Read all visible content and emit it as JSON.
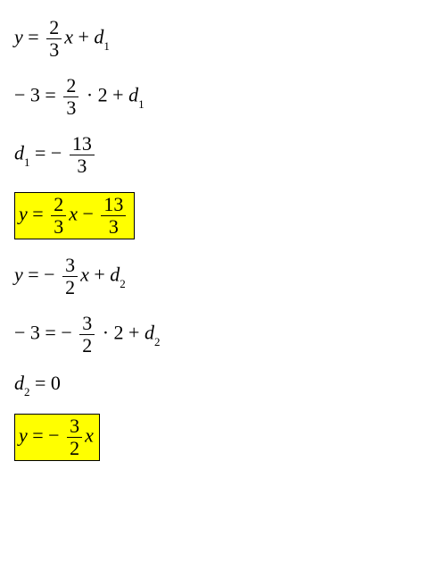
{
  "colors": {
    "background": "#ffffff",
    "text": "#000000",
    "highlight_bg": "#ffff00",
    "highlight_border": "#000000"
  },
  "font": {
    "family": "Times New Roman",
    "size": 22,
    "style": "italic"
  },
  "eq1": {
    "y": "y",
    "eq": " = ",
    "num": "2",
    "den": "3",
    "x": "x",
    "plus": " + ",
    "d": "d",
    "sub": "1"
  },
  "eq2": {
    "lhs": "− 3 = ",
    "num": "2",
    "den": "3",
    "dot": " · 2 + ",
    "d": "d",
    "sub": "1"
  },
  "eq3": {
    "d": "d",
    "sub": "1",
    "eq": " = − ",
    "num": "13",
    "den": "3"
  },
  "eq4": {
    "y": "y",
    "eq": " = ",
    "num1": "2",
    "den1": "3",
    "x": "x",
    "minus": " − ",
    "num2": "13",
    "den2": "3"
  },
  "eq5": {
    "y": "y",
    "eq": " = − ",
    "num": "3",
    "den": "2",
    "x": "x",
    "plus": " + ",
    "d": "d",
    "sub": "2"
  },
  "eq6": {
    "lhs": "− 3 = − ",
    "num": "3",
    "den": "2",
    "dot": " · 2 + ",
    "d": "d",
    "sub": "2"
  },
  "eq7": {
    "d": "d",
    "sub": "2",
    "rhs": " = 0"
  },
  "eq8": {
    "y": "y",
    "eq": " = − ",
    "num": "3",
    "den": "2",
    "x": "x"
  }
}
